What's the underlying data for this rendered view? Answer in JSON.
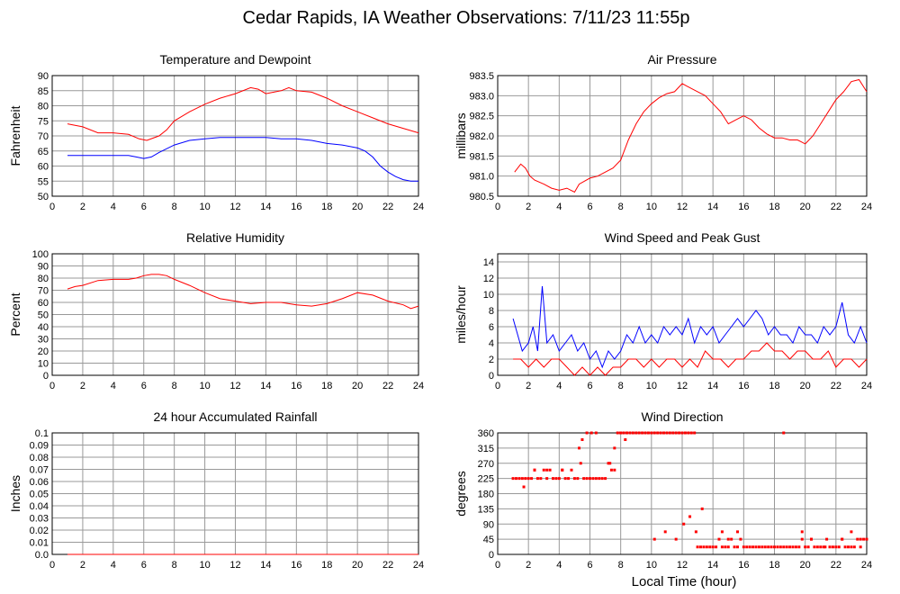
{
  "page": {
    "title": "Cedar Rapids, IA Weather Observations: 7/11/23 11:55p",
    "xlabel": "Local Time (hour)"
  },
  "colors": {
    "primary": "#ff0000",
    "secondary": "#0000ff",
    "grid": "#999999",
    "axis": "#000000"
  },
  "chart_data": [
    {
      "type": "line",
      "title": "Temperature and Dewpoint",
      "ylabel": "Fahrenheit",
      "xlim": [
        0,
        24
      ],
      "ylim": [
        50,
        90
      ],
      "xticks": [
        0,
        2,
        4,
        6,
        8,
        10,
        12,
        14,
        16,
        18,
        20,
        22,
        24
      ],
      "yticks": [
        50,
        55,
        60,
        65,
        70,
        75,
        80,
        85,
        90
      ],
      "grid": true,
      "series": [
        {
          "color": "#ff0000",
          "x": [
            1,
            1.5,
            2,
            3,
            4,
            5,
            5.7,
            6.2,
            7,
            7.5,
            8,
            9,
            10,
            11,
            12,
            13,
            13.5,
            14,
            15,
            15.5,
            16,
            17,
            18,
            19,
            20,
            21,
            22,
            23,
            24
          ],
          "y": [
            74,
            73.5,
            73,
            71,
            71,
            70.5,
            69,
            68.5,
            70,
            72,
            75,
            78,
            80.5,
            82.5,
            84,
            86,
            85.5,
            84,
            85,
            86,
            85,
            84.5,
            82.5,
            80,
            78,
            76,
            74,
            72.5,
            71
          ]
        },
        {
          "color": "#0000ff",
          "x": [
            1,
            2,
            3,
            4,
            5,
            5.5,
            6,
            6.5,
            7,
            8,
            9,
            10,
            11,
            12,
            13,
            14,
            15,
            16,
            17,
            18,
            19,
            20,
            20.5,
            21,
            21.5,
            22,
            22.5,
            23,
            23.5,
            24
          ],
          "y": [
            63.5,
            63.5,
            63.5,
            63.5,
            63.5,
            63,
            62.5,
            63,
            64.5,
            67,
            68.5,
            69,
            69.5,
            69.5,
            69.5,
            69.5,
            69,
            69,
            68.5,
            67.5,
            67,
            66,
            65,
            63,
            60,
            58,
            56.5,
            55.5,
            55,
            55
          ]
        }
      ]
    },
    {
      "type": "line",
      "title": "Air Pressure",
      "ylabel": "millibars",
      "xlim": [
        0,
        24
      ],
      "ylim": [
        980.5,
        983.5
      ],
      "xticks": [
        0,
        2,
        4,
        6,
        8,
        10,
        12,
        14,
        16,
        18,
        20,
        22,
        24
      ],
      "yticks": [
        "980.5",
        "981.0",
        "981.5",
        "982.0",
        "982.5",
        "983.0",
        "983.5"
      ],
      "grid": true,
      "series": [
        {
          "color": "#ff0000",
          "x": [
            1.1,
            1.5,
            1.8,
            2.1,
            2.4,
            3,
            3.5,
            4,
            4.5,
            5,
            5.3,
            6,
            6.5,
            7,
            7.5,
            8,
            8.5,
            9,
            9.5,
            10,
            10.5,
            11,
            11.5,
            12,
            12.5,
            13,
            13.5,
            14,
            14.5,
            15,
            15.5,
            16,
            16.5,
            17,
            17.5,
            18,
            18.5,
            19,
            19.5,
            20,
            20.5,
            21,
            21.5,
            22,
            22.5,
            23,
            23.5,
            24
          ],
          "y": [
            981.1,
            981.3,
            981.2,
            981.0,
            980.9,
            980.8,
            980.7,
            980.65,
            980.7,
            980.6,
            980.8,
            980.95,
            981.0,
            981.1,
            981.2,
            981.4,
            981.9,
            982.3,
            982.6,
            982.8,
            982.95,
            983.05,
            983.1,
            983.3,
            983.2,
            983.1,
            983.0,
            982.8,
            982.6,
            982.3,
            982.4,
            982.5,
            982.4,
            982.2,
            982.05,
            981.95,
            981.95,
            981.9,
            981.9,
            981.8,
            982.0,
            982.3,
            982.6,
            982.9,
            983.1,
            983.35,
            983.4,
            983.1
          ]
        }
      ]
    },
    {
      "type": "line",
      "title": "Relative Humidity",
      "ylabel": "Percent",
      "xlim": [
        0,
        24
      ],
      "ylim": [
        0,
        100
      ],
      "xticks": [
        0,
        2,
        4,
        6,
        8,
        10,
        12,
        14,
        16,
        18,
        20,
        22,
        24
      ],
      "yticks": [
        0,
        10,
        20,
        30,
        40,
        50,
        60,
        70,
        80,
        90,
        100
      ],
      "grid": true,
      "series": [
        {
          "color": "#ff0000",
          "x": [
            1,
            1.5,
            2,
            3,
            4,
            5,
            5.5,
            6,
            6.5,
            7,
            7.5,
            8,
            9,
            10,
            11,
            12,
            13,
            14,
            15,
            16,
            17,
            18,
            19,
            20,
            21,
            22,
            23,
            23.5,
            24
          ],
          "y": [
            71,
            73,
            74,
            78,
            79,
            79,
            80,
            82,
            83,
            83,
            82,
            79,
            74,
            68,
            63,
            61,
            59,
            60,
            60,
            58,
            57,
            59,
            63,
            68,
            66,
            61,
            58,
            55,
            57
          ]
        }
      ]
    },
    {
      "type": "line",
      "title": "Wind Speed and Peak Gust",
      "ylabel": "miles/hour",
      "xlim": [
        0,
        24
      ],
      "ylim": [
        0,
        15
      ],
      "xticks": [
        0,
        2,
        4,
        6,
        8,
        10,
        12,
        14,
        16,
        18,
        20,
        22,
        24
      ],
      "yticks": [
        0,
        2,
        4,
        6,
        8,
        10,
        12,
        14
      ],
      "grid": true,
      "series": [
        {
          "color": "#0000ff",
          "x": [
            1,
            1.3,
            1.6,
            2,
            2.3,
            2.6,
            2.9,
            3.2,
            3.6,
            4,
            4.4,
            4.8,
            5.2,
            5.6,
            6,
            6.4,
            6.8,
            7.2,
            7.6,
            8,
            8.4,
            8.8,
            9.2,
            9.6,
            10,
            10.4,
            10.8,
            11.2,
            11.6,
            12,
            12.4,
            12.8,
            13.2,
            13.6,
            14,
            14.4,
            14.8,
            15.2,
            15.6,
            16,
            16.4,
            16.8,
            17.2,
            17.6,
            18,
            18.4,
            18.8,
            19.2,
            19.6,
            20,
            20.4,
            20.8,
            21.2,
            21.6,
            22,
            22.4,
            22.8,
            23.2,
            23.6,
            24
          ],
          "y": [
            7,
            5,
            3,
            4,
            6,
            3,
            11,
            4,
            5,
            3,
            4,
            5,
            3,
            4,
            2,
            3,
            1,
            3,
            2,
            3,
            5,
            4,
            6,
            4,
            5,
            4,
            6,
            5,
            6,
            5,
            7,
            4,
            6,
            5,
            6,
            4,
            5,
            6,
            7,
            6,
            7,
            8,
            7,
            5,
            6,
            5,
            5,
            4,
            6,
            5,
            5,
            4,
            6,
            5,
            6,
            9,
            5,
            4,
            6,
            4
          ]
        },
        {
          "color": "#ff0000",
          "x": [
            1,
            1.5,
            2,
            2.5,
            3,
            3.5,
            4,
            4.5,
            5,
            5.5,
            6,
            6.5,
            7,
            7.5,
            8,
            8.5,
            9,
            9.5,
            10,
            10.5,
            11,
            11.5,
            12,
            12.5,
            13,
            13.5,
            14,
            14.5,
            15,
            15.5,
            16,
            16.5,
            17,
            17.5,
            18,
            18.5,
            19,
            19.5,
            20,
            20.5,
            21,
            21.5,
            22,
            22.5,
            23,
            23.5,
            24
          ],
          "y": [
            2,
            2,
            1,
            2,
            1,
            2,
            2,
            1,
            0,
            1,
            0,
            1,
            0,
            1,
            1,
            2,
            2,
            1,
            2,
            1,
            2,
            2,
            1,
            2,
            1,
            3,
            2,
            2,
            1,
            2,
            2,
            3,
            3,
            4,
            3,
            3,
            2,
            3,
            3,
            2,
            2,
            3,
            1,
            2,
            2,
            1,
            2
          ]
        }
      ]
    },
    {
      "type": "line",
      "title": "24 hour Accumulated Rainfall",
      "ylabel": "Inches",
      "xlim": [
        0,
        24
      ],
      "ylim": [
        0,
        0.1
      ],
      "xticks": [
        0,
        2,
        4,
        6,
        8,
        10,
        12,
        14,
        16,
        18,
        20,
        22,
        24
      ],
      "yticks": [
        "0.0",
        "0.01",
        "0.02",
        "0.03",
        "0.04",
        "0.05",
        "0.06",
        "0.07",
        "0.08",
        "0.09",
        "0.1"
      ],
      "grid": true,
      "series": [
        {
          "color": "#ff0000",
          "x": [
            1,
            24
          ],
          "y": [
            0,
            0
          ]
        }
      ]
    },
    {
      "type": "scatter",
      "title": "Wind Direction",
      "ylabel": "degrees",
      "xlim": [
        0,
        24
      ],
      "ylim": [
        0,
        360
      ],
      "xticks": [
        0,
        2,
        4,
        6,
        8,
        10,
        12,
        14,
        16,
        18,
        20,
        22,
        24
      ],
      "yticks": [
        0,
        45,
        90,
        135,
        180,
        225,
        270,
        315,
        360
      ],
      "grid": true,
      "series": [
        {
          "color": "#ff0000",
          "x": [
            1.0,
            1.2,
            1.4,
            1.6,
            1.8,
            2.0,
            2.2,
            2.4,
            2.6,
            2.8,
            3.0,
            3.2,
            3.4,
            3.6,
            3.8,
            4.0,
            4.2,
            4.4,
            4.6,
            4.8,
            5.0,
            5.2,
            5.4,
            5.6,
            5.8,
            6.0,
            6.2,
            6.4,
            6.6,
            6.8,
            7.0,
            7.2,
            7.4,
            7.6,
            7.8,
            8.0,
            8.2,
            8.4,
            8.6,
            8.8,
            9.0,
            9.2,
            9.4,
            9.6,
            9.8,
            10.0,
            10.2,
            10.4,
            10.6,
            10.8,
            11.0,
            11.2,
            11.4,
            11.6,
            11.8,
            12.0,
            12.2,
            12.4,
            12.6,
            12.8,
            13.0,
            13.2,
            13.4,
            13.6,
            13.8,
            14.0,
            14.2,
            14.4,
            14.6,
            14.8,
            15.0,
            15.2,
            15.4,
            15.6,
            15.8,
            16.0,
            16.2,
            16.4,
            16.6,
            16.8,
            17.0,
            17.2,
            17.4,
            17.6,
            17.8,
            18.0,
            18.2,
            18.4,
            18.6,
            18.8,
            19.0,
            19.2,
            19.4,
            19.6,
            19.8,
            20.0,
            20.2,
            20.4,
            20.6,
            20.8,
            21.0,
            21.2,
            21.4,
            21.6,
            21.8,
            22.0,
            22.2,
            22.4,
            22.6,
            22.8,
            23.0,
            23.2,
            23.4,
            23.6,
            23.8,
            24.0,
            1.7,
            2.4,
            3.2,
            4.2,
            5.3,
            5.5,
            5.8,
            6.1,
            6.4,
            7.3,
            7.6,
            8.0,
            8.3,
            10.2,
            10.9,
            11.6,
            12.1,
            12.5,
            12.9,
            13.3,
            14.6,
            15.0,
            15.6,
            18.6,
            19.8,
            20.4,
            21.3,
            22.4,
            23.0,
            23.6
          ],
          "y": [
            225,
            225,
            225,
            225,
            225,
            225,
            225,
            250,
            225,
            225,
            250,
            225,
            250,
            225,
            225,
            225,
            250,
            225,
            225,
            250,
            225,
            225,
            270,
            225,
            225,
            225,
            225,
            225,
            225,
            225,
            225,
            270,
            250,
            315,
            360,
            360,
            360,
            360,
            360,
            360,
            360,
            360,
            360,
            360,
            360,
            360,
            360,
            360,
            360,
            360,
            360,
            360,
            360,
            360,
            360,
            360,
            360,
            360,
            360,
            360,
            22,
            22,
            22,
            22,
            22,
            22,
            22,
            45,
            22,
            22,
            22,
            45,
            22,
            22,
            45,
            22,
            22,
            22,
            22,
            22,
            22,
            22,
            22,
            22,
            22,
            22,
            22,
            22,
            22,
            22,
            22,
            22,
            22,
            22,
            45,
            22,
            22,
            45,
            22,
            22,
            22,
            22,
            45,
            22,
            22,
            22,
            22,
            45,
            22,
            22,
            22,
            22,
            45,
            22,
            45,
            45,
            200,
            250,
            250,
            250,
            315,
            340,
            360,
            360,
            360,
            270,
            250,
            360,
            340,
            45,
            67,
            45,
            90,
            112,
            67,
            135,
            67,
            45,
            67,
            360,
            67,
            45,
            22,
            45,
            67,
            45
          ]
        }
      ]
    }
  ]
}
